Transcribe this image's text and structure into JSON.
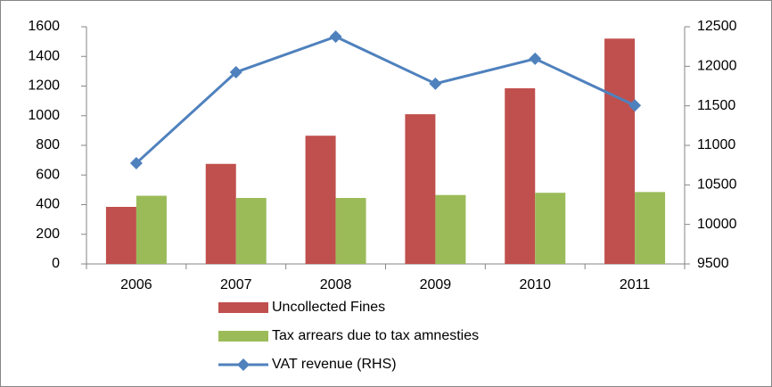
{
  "chart_data": {
    "type": "bar",
    "categories": [
      "2006",
      "2007",
      "2008",
      "2009",
      "2010",
      "2011"
    ],
    "series": [
      {
        "name": "Uncollected Fines",
        "color": "#c0504d",
        "type": "bar",
        "values": [
          385,
          675,
          865,
          1010,
          1185,
          1520
        ]
      },
      {
        "name": "Tax arrears due to tax amnesties",
        "color": "#9bbb59",
        "type": "bar",
        "values": [
          460,
          445,
          445,
          465,
          480,
          485
        ]
      },
      {
        "name": "VAT revenue (RHS)",
        "color": "#4f81bd",
        "type": "line",
        "axis": "y2",
        "values": [
          10775,
          11925,
          12375,
          11780,
          12095,
          11505
        ]
      }
    ],
    "ylim": [
      0,
      1600
    ],
    "yticks": [
      0,
      200,
      400,
      600,
      800,
      1000,
      1200,
      1400,
      1600
    ],
    "y2lim": [
      9500,
      12500
    ],
    "y2ticks": [
      9500,
      10000,
      10500,
      11000,
      11500,
      12000,
      12500
    ],
    "grid": false,
    "legend": "bottom"
  }
}
